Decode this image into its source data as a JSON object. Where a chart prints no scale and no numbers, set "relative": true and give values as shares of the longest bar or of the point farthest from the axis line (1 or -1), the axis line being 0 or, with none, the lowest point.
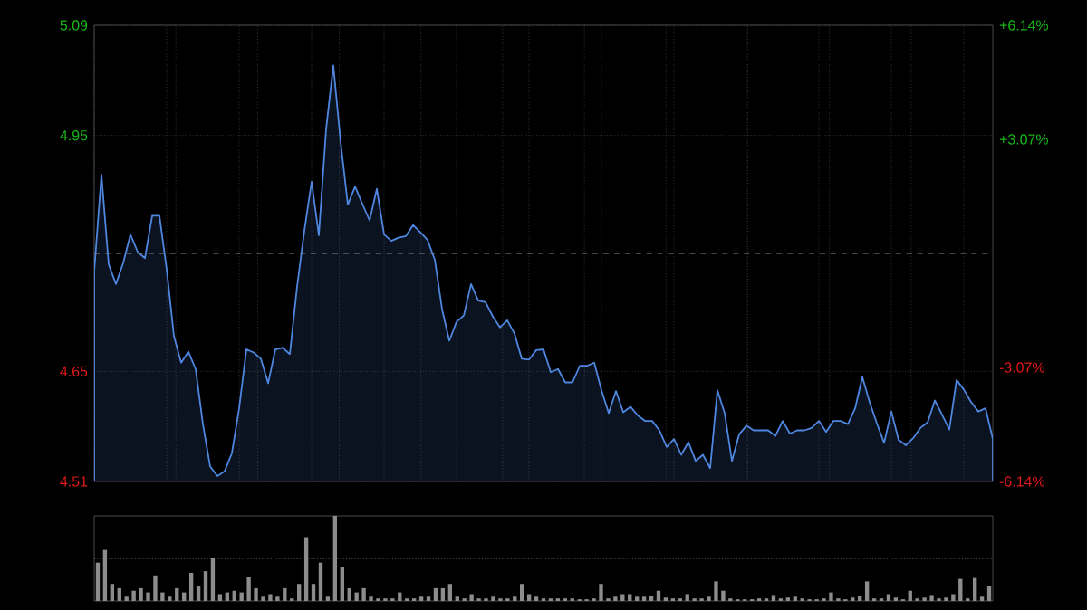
{
  "chart_data": [
    {
      "type": "area",
      "color": "#4f86e0",
      "grid": true,
      "ylim": [
        4.51,
        5.09
      ],
      "yticks": [
        4.51,
        4.65,
        4.95,
        5.09
      ],
      "y2lim": [
        -6.14,
        6.14
      ],
      "y2ticks": [
        {
          "value": -6.14,
          "label": "-6.14%"
        },
        {
          "value": -3.07,
          "label": "-3.07%"
        },
        {
          "value": 3.07,
          "label": "+3.07%"
        },
        {
          "value": 6.14,
          "label": "+6.14%"
        }
      ],
      "ref_lines": [
        {
          "axis": "y",
          "value": 4.8,
          "line_style": "dashed"
        }
      ],
      "categories": [
        null,
        null,
        null,
        null,
        null,
        null,
        null,
        null,
        null,
        null,
        null,
        null,
        null,
        null,
        null,
        null,
        null,
        null,
        null,
        null,
        null,
        null,
        null,
        null,
        null,
        null,
        null,
        null,
        null,
        null,
        null,
        null,
        null,
        null,
        null,
        null,
        null,
        null,
        null,
        null,
        null,
        null,
        null,
        null,
        null,
        null,
        null,
        null,
        null,
        null,
        null,
        null,
        null,
        null,
        null,
        null,
        null,
        null,
        null,
        null,
        null,
        null,
        null,
        null,
        null,
        null,
        null,
        null,
        null,
        null,
        null,
        null,
        null,
        null,
        null,
        null,
        null,
        null,
        null,
        null,
        null,
        null,
        null,
        null,
        null,
        null,
        null,
        null,
        null,
        null,
        null,
        null,
        null,
        null,
        null,
        null,
        null,
        null,
        null,
        null,
        null,
        null,
        null,
        null,
        null,
        null,
        null,
        null,
        null,
        null,
        null,
        null,
        null,
        null,
        null,
        null,
        null,
        null,
        null,
        null,
        null,
        null,
        null,
        null,
        null
      ],
      "values": [
        4.777,
        4.9,
        4.786,
        4.761,
        4.788,
        4.824,
        4.802,
        4.794,
        4.848,
        4.848,
        4.78,
        4.695,
        4.661,
        4.675,
        4.653,
        4.583,
        4.529,
        4.517,
        4.523,
        4.546,
        4.603,
        4.678,
        4.674,
        4.666,
        4.635,
        4.678,
        4.68,
        4.672,
        4.758,
        4.829,
        4.891,
        4.823,
        4.958,
        5.039,
        4.942,
        4.862,
        4.885,
        4.863,
        4.842,
        4.882,
        4.824,
        4.816,
        4.82,
        4.822,
        4.836,
        4.827,
        4.817,
        4.792,
        4.729,
        4.689,
        4.713,
        4.721,
        4.761,
        4.74,
        4.738,
        4.72,
        4.706,
        4.715,
        4.698,
        4.666,
        4.665,
        4.677,
        4.678,
        4.649,
        4.653,
        4.636,
        4.636,
        4.657,
        4.657,
        4.661,
        4.626,
        4.597,
        4.625,
        4.598,
        4.605,
        4.594,
        4.587,
        4.587,
        4.575,
        4.554,
        4.564,
        4.544,
        4.56,
        4.536,
        4.544,
        4.527,
        4.626,
        4.597,
        4.536,
        4.57,
        4.581,
        4.575,
        4.575,
        4.575,
        4.568,
        4.587,
        4.571,
        4.575,
        4.575,
        4.578,
        4.587,
        4.573,
        4.587,
        4.587,
        4.583,
        4.603,
        4.643,
        4.611,
        4.584,
        4.559,
        4.599,
        4.563,
        4.556,
        4.565,
        4.578,
        4.585,
        4.613,
        4.595,
        4.576,
        4.639,
        4.627,
        4.611,
        4.599,
        4.603,
        4.564
      ]
    },
    {
      "type": "bar",
      "color": "#8c8c8c",
      "relative": true,
      "ref_lines": [
        {
          "axis": "y",
          "value": 0.5,
          "line_style": "dotted"
        }
      ],
      "categories": [
        null,
        null,
        null,
        null,
        null,
        null,
        null,
        null,
        null,
        null,
        null,
        null,
        null,
        null,
        null,
        null,
        null,
        null,
        null,
        null,
        null,
        null,
        null,
        null,
        null,
        null,
        null,
        null,
        null,
        null,
        null,
        null,
        null,
        null,
        null,
        null,
        null,
        null,
        null,
        null,
        null,
        null,
        null,
        null,
        null,
        null,
        null,
        null,
        null,
        null,
        null,
        null,
        null,
        null,
        null,
        null,
        null,
        null,
        null,
        null,
        null,
        null,
        null,
        null,
        null,
        null,
        null,
        null,
        null,
        null,
        null,
        null,
        null,
        null,
        null,
        null,
        null,
        null,
        null,
        null,
        null,
        null,
        null,
        null,
        null,
        null,
        null,
        null,
        null,
        null,
        null,
        null,
        null,
        null,
        null,
        null,
        null,
        null,
        null,
        null,
        null,
        null,
        null,
        null,
        null,
        null,
        null,
        null,
        null,
        null,
        null,
        null,
        null,
        null,
        null,
        null,
        null,
        null,
        null,
        null,
        null,
        null,
        null,
        null,
        null
      ],
      "values": [
        0.45,
        0.6,
        0.2,
        0.15,
        0.05,
        0.12,
        0.15,
        0.1,
        0.3,
        0.1,
        0.05,
        0.15,
        0.1,
        0.33,
        0.18,
        0.35,
        0.5,
        0.08,
        0.1,
        0.12,
        0.1,
        0.28,
        0.15,
        0.05,
        0.08,
        0.05,
        0.15,
        0.03,
        0.2,
        0.75,
        0.2,
        0.45,
        0.05,
        1,
        0.4,
        0.15,
        0.1,
        0.15,
        0.05,
        0.03,
        0.03,
        0.03,
        0.1,
        0.03,
        0.03,
        0.05,
        0.05,
        0.15,
        0.15,
        0.2,
        0.05,
        0.03,
        0.08,
        0.03,
        0.03,
        0.05,
        0.03,
        0.03,
        0.05,
        0.2,
        0.08,
        0.05,
        0.03,
        0.03,
        0.03,
        0.03,
        0.03,
        0.02,
        0.02,
        0.03,
        0.2,
        0.03,
        0.05,
        0.08,
        0.08,
        0.05,
        0.05,
        0.06,
        0.12,
        0.04,
        0.03,
        0.03,
        0.08,
        0.03,
        0.03,
        0.05,
        0.23,
        0.12,
        0.03,
        0.02,
        0.02,
        0.02,
        0.03,
        0.03,
        0.07,
        0.03,
        0.04,
        0.05,
        0.03,
        0.02,
        0.02,
        0.03,
        0.1,
        0.03,
        0.02,
        0.04,
        0.06,
        0.23,
        0.03,
        0.03,
        0.08,
        0.04,
        0.02,
        0.12,
        0.03,
        0.04,
        0.07,
        0.03,
        0.04,
        0.08,
        0.26,
        0.03,
        0.27,
        0.05,
        0.18
      ]
    }
  ]
}
